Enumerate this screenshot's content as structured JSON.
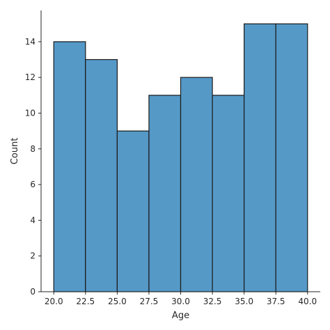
{
  "chart_data": {
    "type": "bar",
    "subtype": "histogram",
    "bins": [
      {
        "start": 20.0,
        "end": 22.5,
        "count": 14
      },
      {
        "start": 22.5,
        "end": 25.0,
        "count": 13
      },
      {
        "start": 25.0,
        "end": 27.5,
        "count": 9
      },
      {
        "start": 27.5,
        "end": 30.0,
        "count": 11
      },
      {
        "start": 30.0,
        "end": 32.5,
        "count": 12
      },
      {
        "start": 32.5,
        "end": 35.0,
        "count": 11
      },
      {
        "start": 35.0,
        "end": 37.5,
        "count": 15
      },
      {
        "start": 37.5,
        "end": 40.0,
        "count": 15
      }
    ],
    "xlabel": "Age",
    "ylabel": "Count",
    "xticks": [
      "20.0",
      "22.5",
      "25.0",
      "27.5",
      "30.0",
      "32.5",
      "35.0",
      "37.5",
      "40.0"
    ],
    "yticks": [
      "0",
      "2",
      "4",
      "6",
      "8",
      "10",
      "12",
      "14"
    ],
    "xlim": [
      19.0,
      41.0
    ],
    "ylim": [
      0,
      15.75
    ],
    "grid": false,
    "bar_color": "#5599c7",
    "edge_color": "#1a1a1a"
  }
}
